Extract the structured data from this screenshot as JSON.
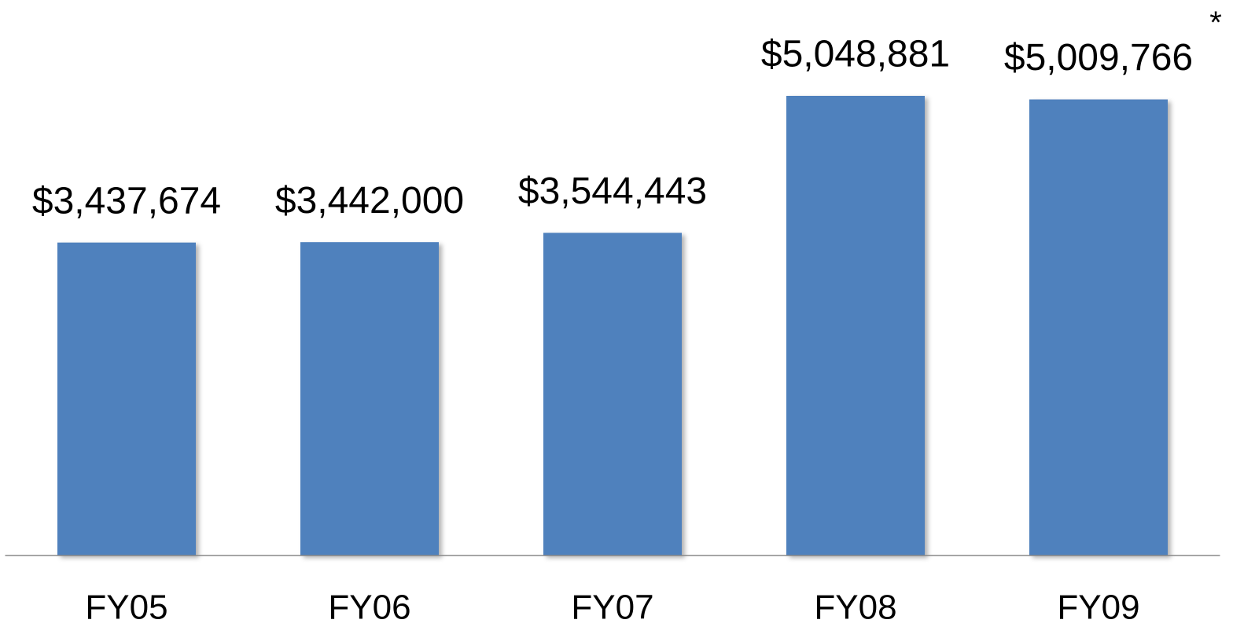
{
  "chart_data": {
    "type": "bar",
    "categories": [
      "FY05",
      "FY06",
      "FY07",
      "FY08",
      "FY09"
    ],
    "values": [
      3437674,
      3442000,
      3544443,
      5048881,
      5009766
    ],
    "value_labels": [
      "$3,437,674",
      "$3,442,000",
      "$3,544,443",
      "$5,048,881",
      "$5,009,766"
    ],
    "annotation": "*",
    "color": "#4f81bd"
  }
}
